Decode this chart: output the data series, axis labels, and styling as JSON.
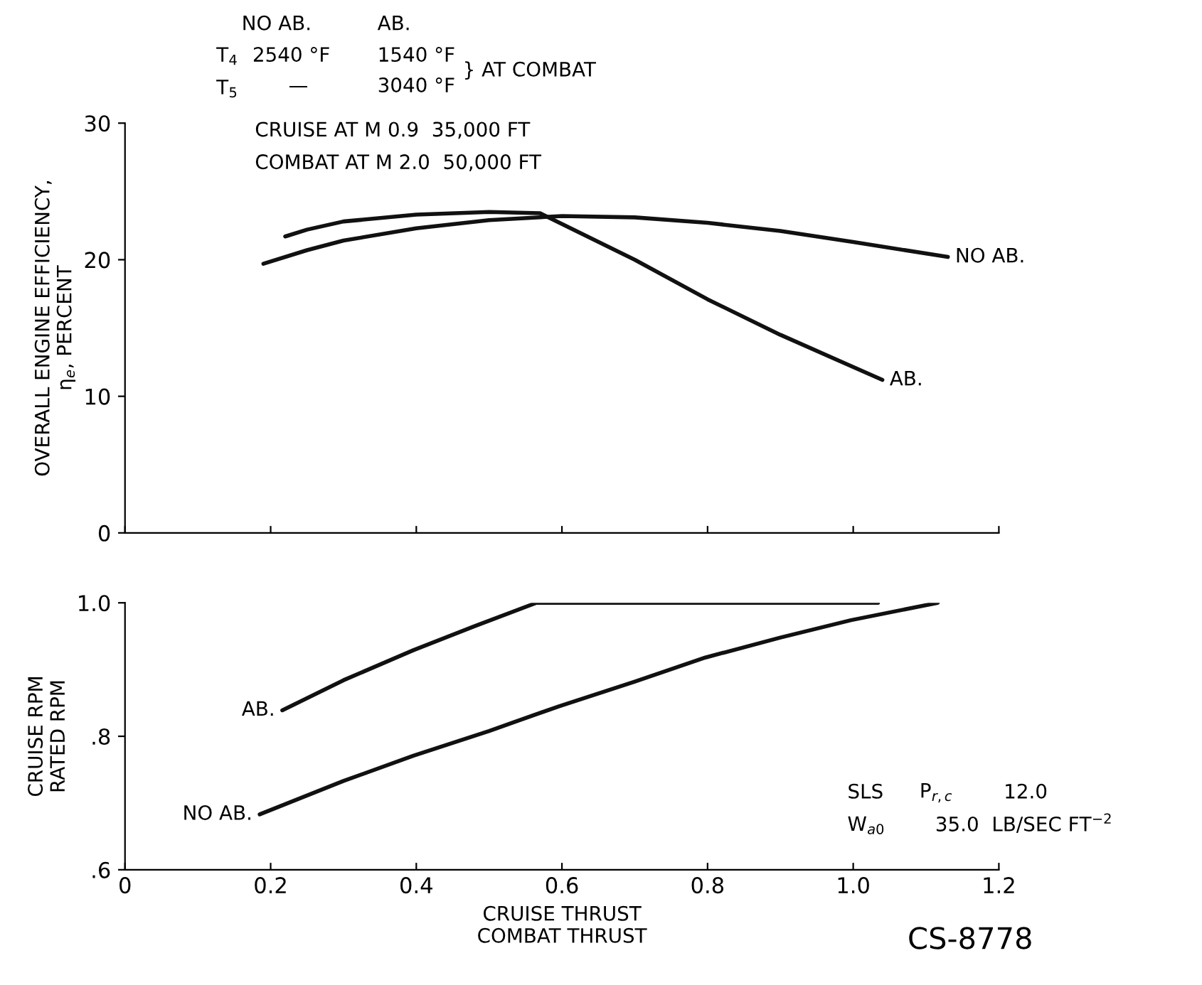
{
  "chart_data": [
    {
      "type": "line",
      "ylabel": "OVERALL ENGINE EFFICIENCY,\nη$_{e}$, PERCENT",
      "xlim": [
        0,
        1.2
      ],
      "xticks": [
        0,
        0.2,
        0.4,
        0.6,
        0.8,
        1.0,
        1.2
      ],
      "ylim": [
        0,
        30
      ],
      "yticks": [
        0,
        10,
        20,
        30
      ],
      "tick_labels": "y",
      "grid": false,
      "legend": false,
      "annotations": [
        "NO AB.",
        "AB.",
        "T$_{4}$",
        "2540 °F",
        "1540 °F",
        "T$_{5}$",
        "—",
        "3040 °F",
        "} AT COMBAT",
        "CRUISE AT M 0.9  35,000 FT",
        "COMBAT AT M 2.0  50,000 FT"
      ],
      "series": [
        {
          "name": "NO AB.",
          "color": "#111111",
          "x": [
            0.19,
            0.25,
            0.3,
            0.4,
            0.5,
            0.6,
            0.7,
            0.8,
            0.9,
            1.0,
            1.13
          ],
          "values": [
            19.7,
            20.7,
            21.4,
            22.3,
            22.9,
            23.2,
            23.1,
            22.7,
            22.1,
            21.3,
            20.2
          ]
        },
        {
          "name": "AB.",
          "color": "#111111",
          "x": [
            0.22,
            0.25,
            0.3,
            0.4,
            0.5,
            0.57,
            0.7,
            0.8,
            0.9,
            1.04
          ],
          "values": [
            21.7,
            22.2,
            22.8,
            23.3,
            23.5,
            23.4,
            20.0,
            17.1,
            14.5,
            11.2
          ]
        }
      ]
    },
    {
      "type": "line",
      "xlabel": "CRUISE THRUST\nCOMBAT THRUST",
      "ylabel": "CRUISE RPM\nRATED RPM",
      "xlim": [
        0,
        1.2
      ],
      "xticks": [
        0,
        0.2,
        0.4,
        0.6,
        0.8,
        {
          "value": 1.0,
          "label": "1.0"
        },
        1.2
      ],
      "ylim": [
        0.6,
        1.0
      ],
      "yticks": [
        {
          "value": 0.6,
          "label": ".6"
        },
        {
          "value": 0.8,
          "label": ".8"
        },
        {
          "value": 1.0,
          "label": "1.0"
        }
      ],
      "grid": false,
      "legend": false,
      "annotations": [
        "SLS",
        "P$_{r,c}$",
        "12.0",
        "W$_{a0}$",
        "35.0  LB/SEC FT$^{−2}$",
        "CS-8778"
      ],
      "series": [
        {
          "name": "AB.",
          "color": "#111111",
          "x": [
            0.216,
            0.3,
            0.396,
            0.48,
            0.565,
            0.8,
            1.034
          ],
          "values": [
            0.839,
            0.884,
            0.929,
            0.965,
            1.0,
            1.0,
            1.0
          ]
        },
        {
          "name": "NO AB.",
          "color": "#111111",
          "x": [
            0.185,
            0.3,
            0.396,
            0.5,
            0.596,
            0.7,
            0.797,
            0.9,
            0.997,
            1.116
          ],
          "values": [
            0.683,
            0.733,
            0.771,
            0.808,
            0.845,
            0.882,
            0.918,
            0.948,
            0.974,
            1.0
          ]
        }
      ]
    }
  ]
}
